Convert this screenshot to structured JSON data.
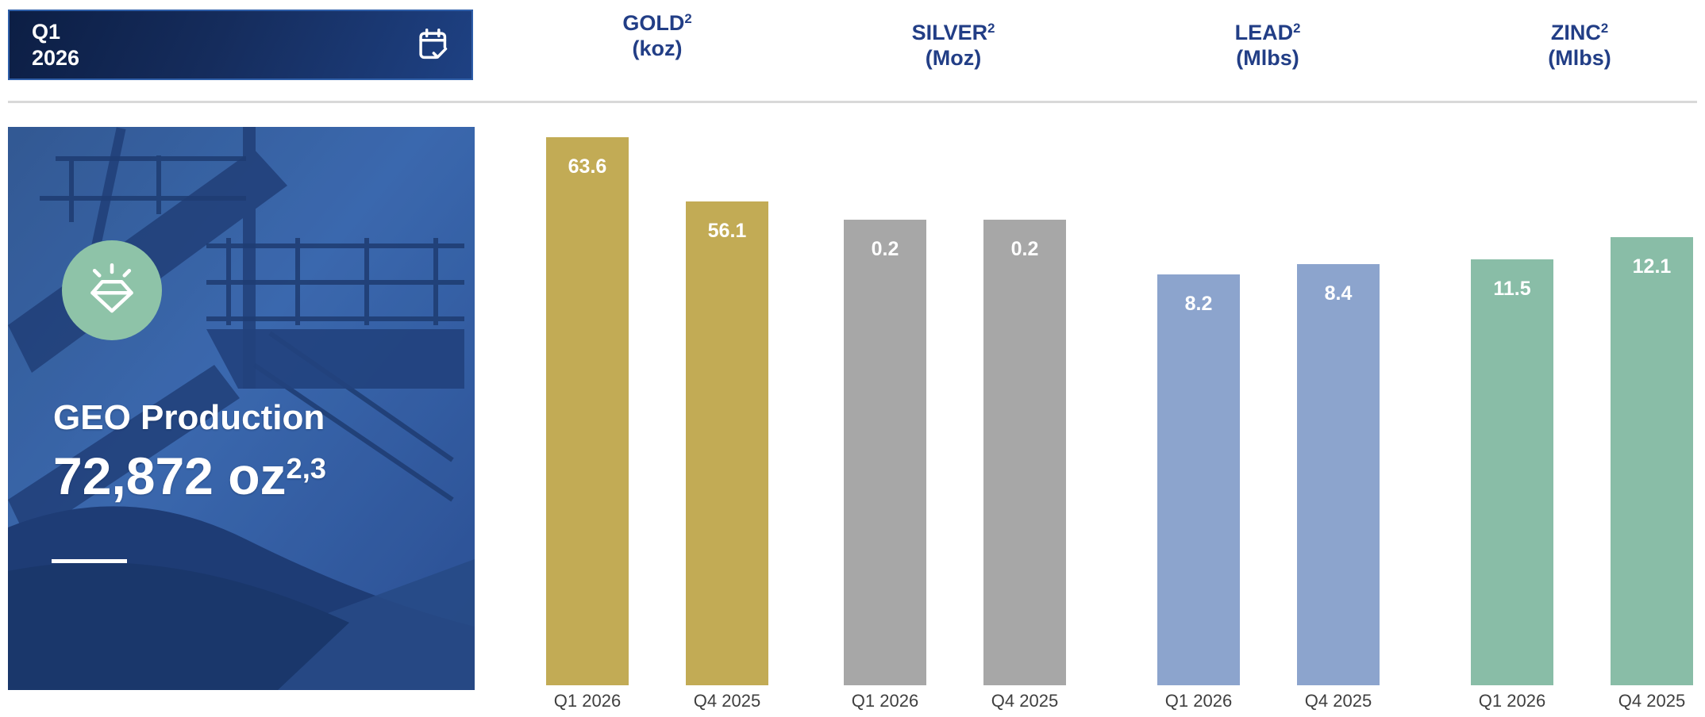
{
  "banner": {
    "line1": "Q1",
    "line2": "2026",
    "icon": "calendar-check-icon"
  },
  "hero": {
    "icon": "diamond-icon",
    "icon_circle_color": "#8ec3a8",
    "title": "GEO Production",
    "value": "72,872 oz",
    "value_superscript": "2,3"
  },
  "chart_data": {
    "type": "bar",
    "grid": false,
    "legend": "none",
    "value_labels": "inside-top",
    "header_text_color": "#223e86",
    "value_label_color": "#ffffff",
    "category_label_color": "#3f3f3f",
    "groups": [
      {
        "title": "GOLD",
        "title_superscript": "2",
        "unit": "(koz)",
        "color": "#c2ab55",
        "categories": [
          "Q1 2026",
          "Q4 2025"
        ],
        "values": [
          63.6,
          56.1
        ],
        "labels": [
          "63.6",
          "56.1"
        ]
      },
      {
        "title": "SILVER",
        "title_superscript": "2",
        "unit": "(Moz)",
        "color": "#a7a7a7",
        "categories": [
          "Q1 2026",
          "Q4 2025"
        ],
        "values": [
          0.2,
          0.2
        ],
        "labels": [
          "0.2",
          "0.2"
        ]
      },
      {
        "title": "LEAD",
        "title_superscript": "2",
        "unit": "(Mlbs)",
        "color": "#8ca4cd",
        "categories": [
          "Q1 2026",
          "Q4 2025"
        ],
        "values": [
          8.2,
          8.4
        ],
        "labels": [
          "8.2",
          "8.4"
        ]
      },
      {
        "title": "ZINC",
        "title_superscript": "2",
        "unit": "(Mlbs)",
        "color": "#89bda7",
        "categories": [
          "Q1 2026",
          "Q4 2025"
        ],
        "values": [
          11.5,
          12.1
        ],
        "labels": [
          "11.5",
          "12.1"
        ]
      }
    ]
  },
  "colors": {
    "banner_gradient_start": "#0c1e44",
    "banner_gradient_end": "#1e4183",
    "banner_border": "#2f5fa9",
    "top_rule": "#d9d9d9",
    "photo_overlay_blue": "#2b57a5"
  }
}
